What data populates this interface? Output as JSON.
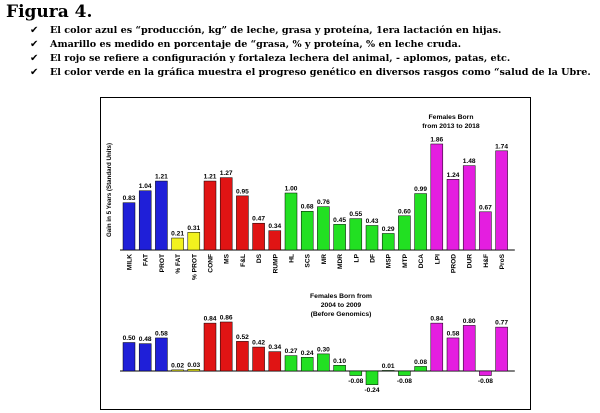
{
  "page": {
    "title": "Figura 4.",
    "check_glyph": "✔",
    "bullets": [
      "El color azul es “producción, kg” de leche, grasa y proteína, 1era lactación en hijas.",
      "Amarillo es medido en porcentaje de “grasa, % y proteína, % en leche cruda.",
      "El rojo se refiere a configuración y fortaleza lechera del animal, - aplomos, patas, etc.",
      "El color verde en la gráfica muestra el progreso genético en diversos rasgos como “salud de la Ubre."
    ]
  },
  "chart_data": {
    "type": "bar",
    "ylabel": "Gain in 5 Years (Standard Units)",
    "categories": [
      "MILK",
      "FAT",
      "PROT",
      "% FAT",
      "% PROT",
      "CONF",
      "MS",
      "F&L",
      "DS",
      "RUMP",
      "HL",
      "SCS",
      "MR",
      "MDR",
      "LP",
      "DF",
      "MSP",
      "MTP",
      "DCA",
      "LPI",
      "PROD",
      "DUR",
      "H&F",
      "ProS"
    ],
    "category_groups": [
      "production",
      "production",
      "production",
      "percent",
      "percent",
      "conformation",
      "conformation",
      "conformation",
      "conformation",
      "conformation",
      "health",
      "health",
      "health",
      "health",
      "health",
      "health",
      "health",
      "health",
      "health",
      "index",
      "index",
      "index",
      "index",
      "index"
    ],
    "group_colors": {
      "production": "#1f1fd8",
      "percent": "#f2f21e",
      "conformation": "#e01414",
      "health": "#22e022",
      "index": "#e41ee0"
    },
    "series": [
      {
        "name": "Females Born from 2013 to 2018",
        "annotation_lines": [
          "Females Born",
          "from 2013 to 2018"
        ],
        "values": [
          0.83,
          1.04,
          1.21,
          0.21,
          0.31,
          1.21,
          1.27,
          0.95,
          0.47,
          0.34,
          1.0,
          0.68,
          0.76,
          0.45,
          0.55,
          0.43,
          0.29,
          0.6,
          0.99,
          1.86,
          1.24,
          1.48,
          0.67,
          1.74
        ],
        "labels": [
          "0.83",
          "1.04",
          "1.21",
          "0.21",
          "0.31",
          "1.21",
          "1.27",
          "0.95",
          "0.47",
          "0.34",
          "1.00",
          "0.68",
          "0.76",
          "0.45",
          "0.55",
          "0.43",
          "0.29",
          "0.60",
          "0.99",
          "1.86",
          "1.24",
          "1.48",
          "0.67",
          "1.74"
        ]
      },
      {
        "name": "Females Born from 2004 to 2009 (Before Genomics)",
        "annotation_lines": [
          "Females Born from",
          "2004 to 2009",
          "(Before Genomics)"
        ],
        "values": [
          0.5,
          0.48,
          0.58,
          0.02,
          0.03,
          0.84,
          0.86,
          0.52,
          0.42,
          0.34,
          0.27,
          0.24,
          0.3,
          0.1,
          -0.08,
          -0.24,
          0.01,
          -0.08,
          0.08,
          0.84,
          0.58,
          0.8,
          -0.08,
          0.77
        ],
        "labels": [
          "0.50",
          "0.48",
          "0.58",
          "0.02",
          "0.03",
          "0.84",
          "0.86",
          "0.52",
          "0.42",
          "0.34",
          "0.27",
          "0.24",
          "0.30",
          "0.10",
          "-0.08",
          "-0.24",
          "0.01",
          "-0.08",
          "0.08",
          "0.84",
          "0.58",
          "0.80",
          "-0.08",
          "0.77"
        ]
      }
    ]
  }
}
